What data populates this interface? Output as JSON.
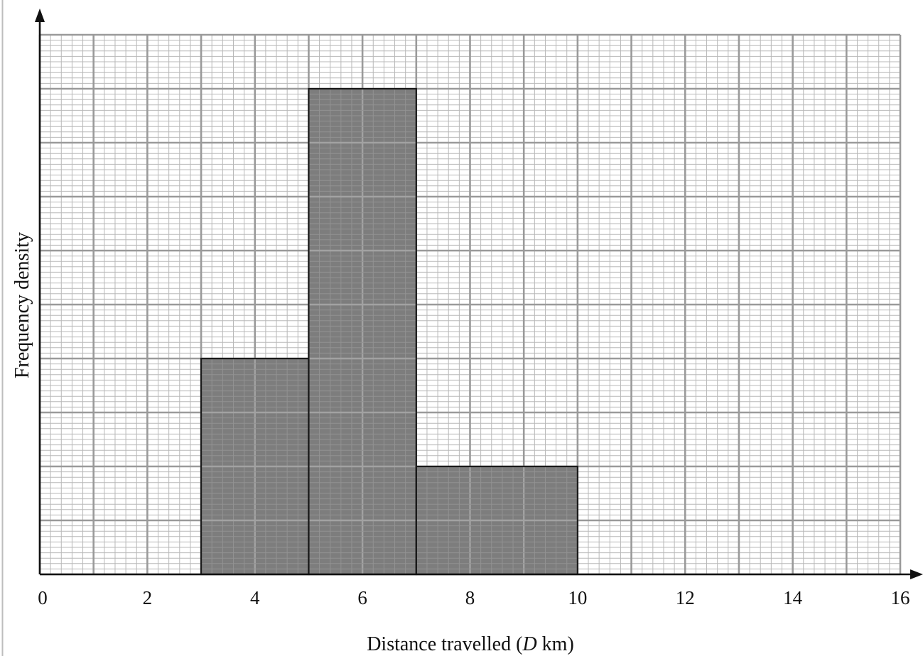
{
  "chart_data": {
    "type": "histogram",
    "xlabel": {
      "prefix": "Distance travelled (",
      "var": "D",
      "suffix": " km)"
    },
    "ylabel": "Frequency density",
    "xlim": [
      0,
      16
    ],
    "ylim": [
      0,
      10
    ],
    "x_ticks": [
      "0",
      "2",
      "4",
      "6",
      "8",
      "10",
      "12",
      "14",
      "16"
    ],
    "y_ticks": [],
    "grid": true,
    "bars": [
      {
        "x_start": 3,
        "x_end": 5,
        "height": 4
      },
      {
        "x_start": 5,
        "x_end": 7,
        "height": 9
      },
      {
        "x_start": 7,
        "x_end": 10,
        "height": 2
      }
    ]
  }
}
